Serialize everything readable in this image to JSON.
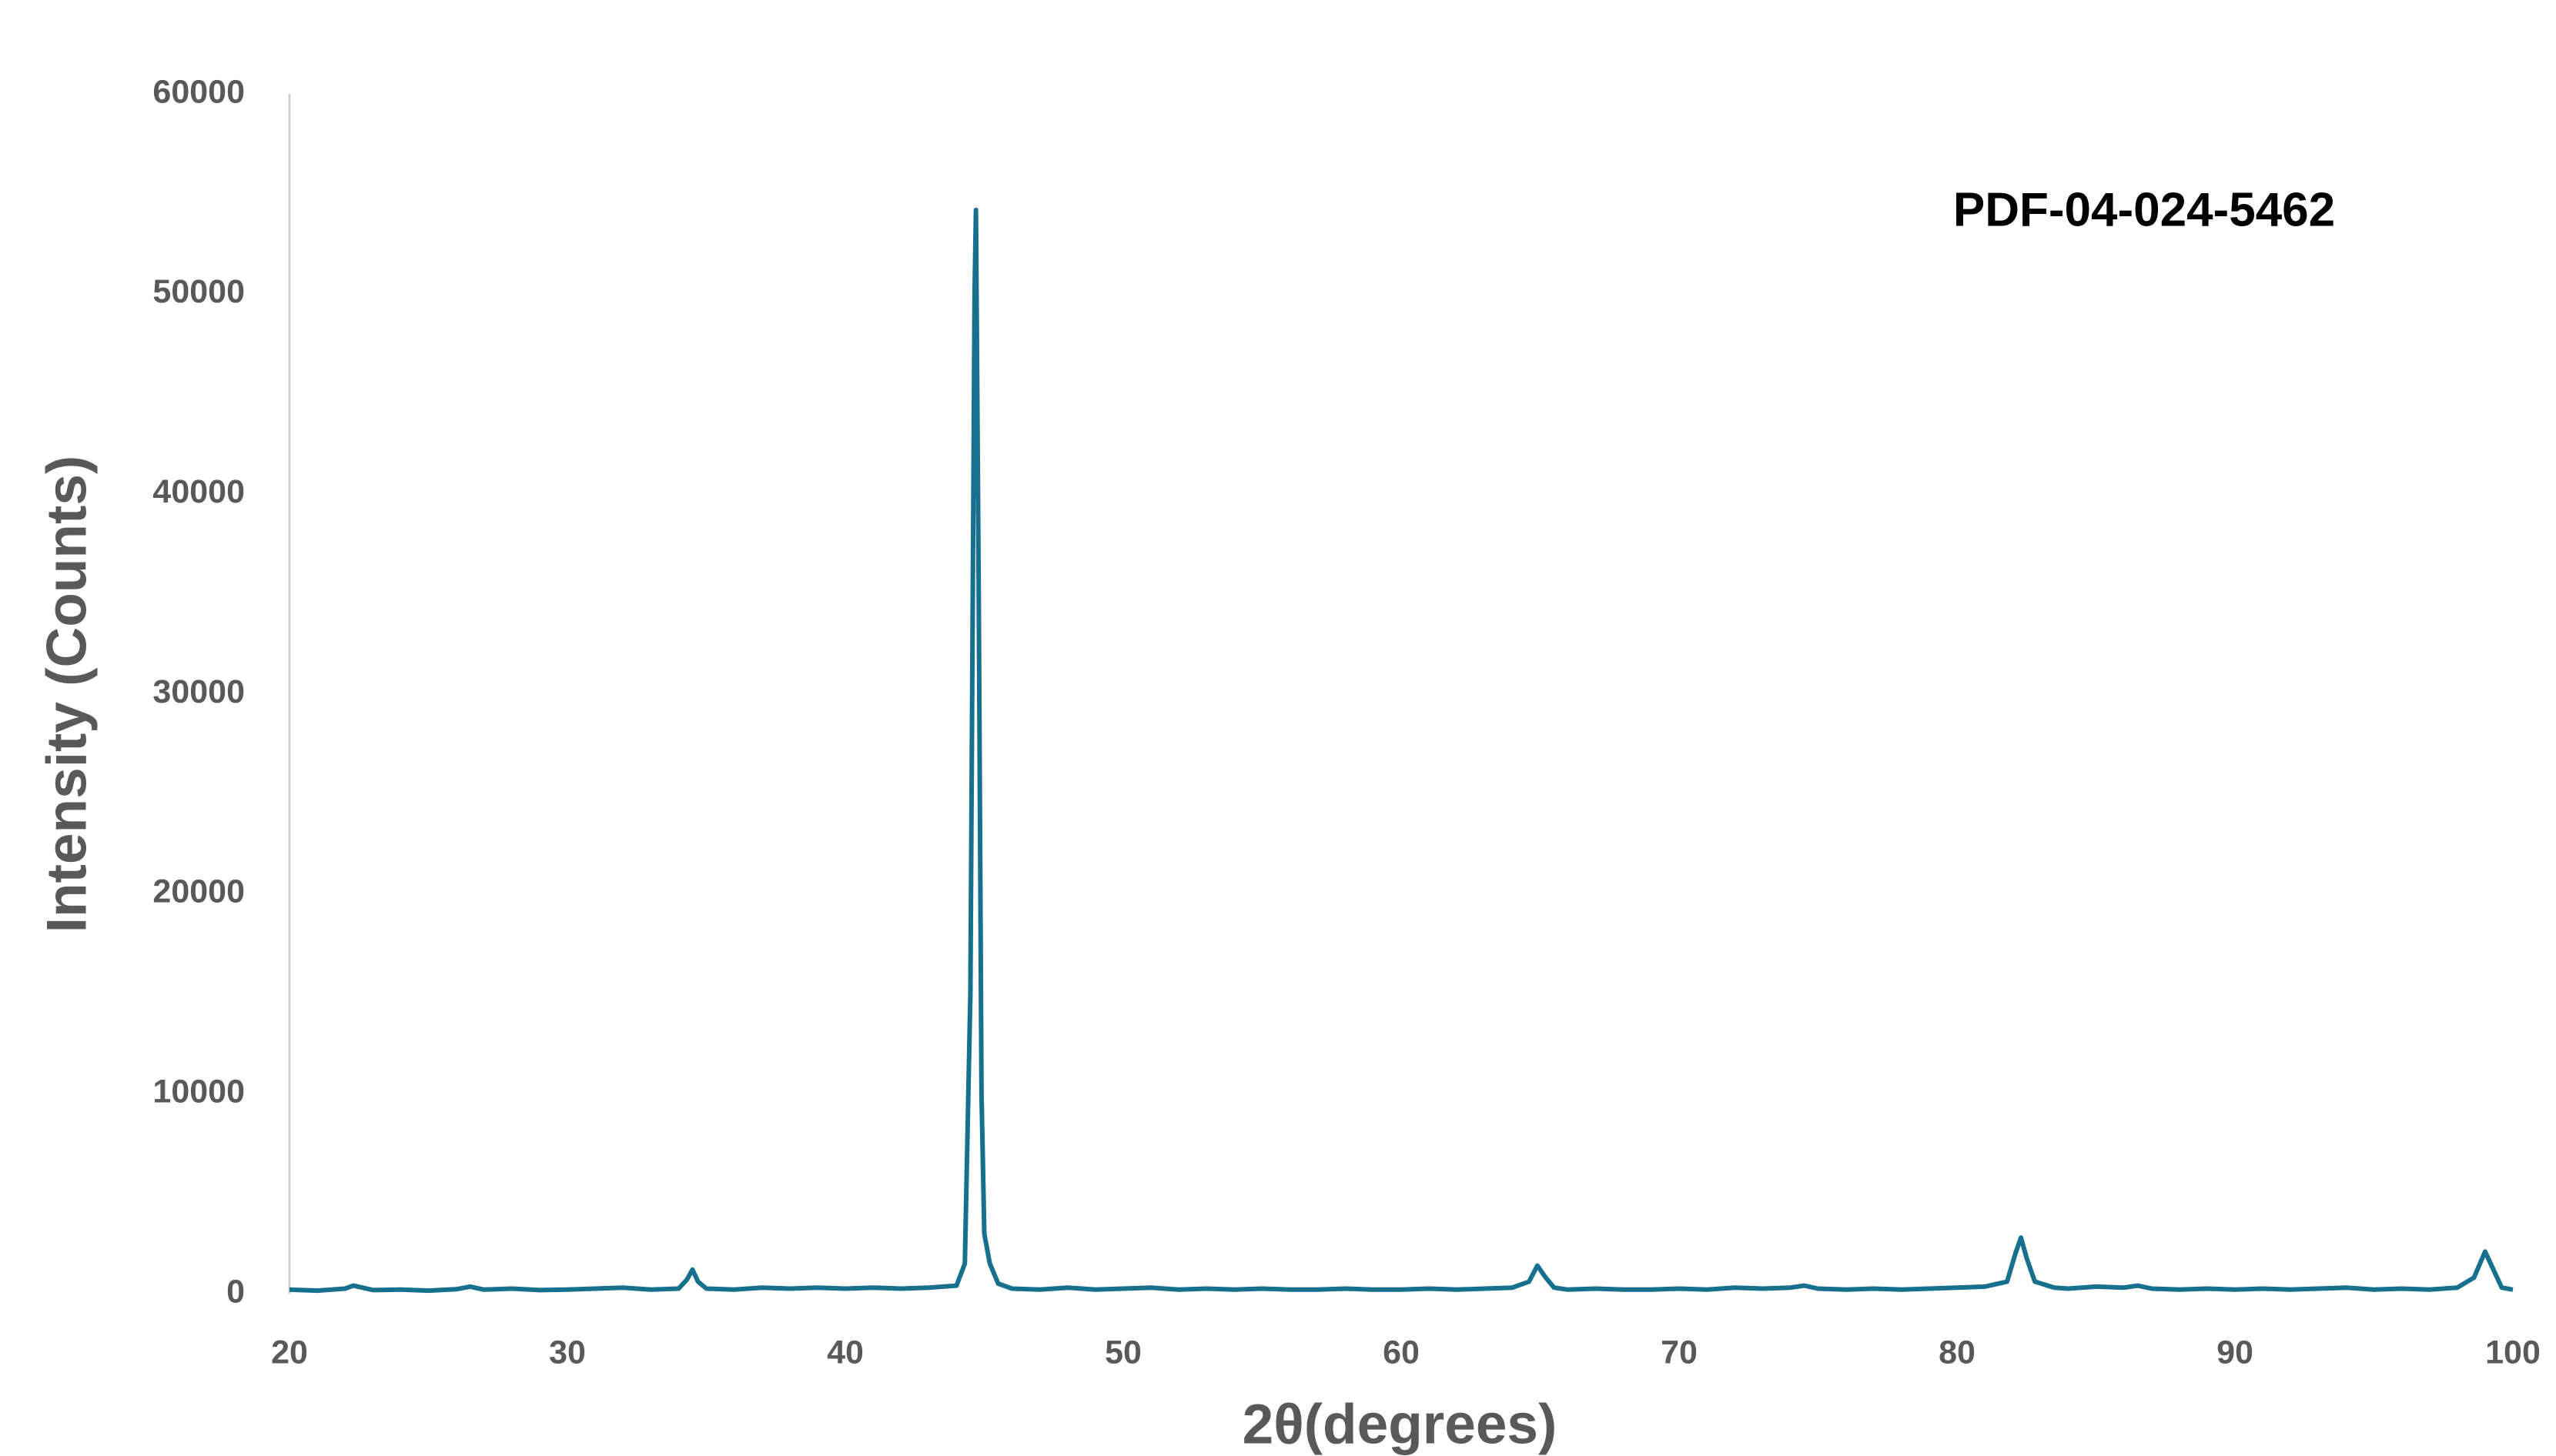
{
  "chart_data": {
    "type": "line",
    "annotation": "PDF-04-024-5462",
    "x_label": "2θ(degrees)",
    "y_label": "Intensity (Counts)",
    "color": "#18708f",
    "x": [
      20,
      21,
      22,
      22.3,
      23,
      24,
      25,
      26,
      26.5,
      27,
      28,
      29,
      30,
      31,
      32,
      33,
      34,
      34.3,
      34.5,
      34.7,
      35,
      36,
      37,
      38,
      39,
      40,
      41,
      42,
      43,
      44,
      44.3,
      44.5,
      44.65,
      44.7,
      44.8,
      44.9,
      45,
      45.2,
      45.5,
      46,
      47,
      48,
      49,
      50,
      51,
      52,
      53,
      54,
      55,
      56,
      57,
      58,
      59,
      60,
      61,
      62,
      63,
      64,
      64.6,
      64.9,
      65.2,
      65.5,
      66,
      67,
      68,
      69,
      70,
      71,
      72,
      73,
      74,
      74.5,
      75,
      76,
      77,
      78,
      79,
      80,
      81,
      81.8,
      82.1,
      82.3,
      82.5,
      82.8,
      83.5,
      84,
      85,
      86,
      86.5,
      87,
      88,
      89,
      90,
      91,
      92,
      93,
      94,
      95,
      96,
      97,
      98,
      98.6,
      99,
      99.3,
      99.6,
      100
    ],
    "values": [
      200,
      150,
      250,
      400,
      180,
      200,
      150,
      220,
      350,
      200,
      250,
      180,
      200,
      250,
      300,
      200,
      250,
      700,
      1200,
      600,
      250,
      200,
      300,
      250,
      300,
      250,
      300,
      250,
      300,
      400,
      1500,
      15000,
      50000,
      54200,
      35000,
      10000,
      3000,
      1500,
      500,
      250,
      200,
      300,
      200,
      250,
      300,
      200,
      250,
      200,
      250,
      200,
      200,
      250,
      200,
      200,
      250,
      200,
      250,
      300,
      600,
      1400,
      800,
      300,
      200,
      250,
      200,
      200,
      250,
      200,
      300,
      250,
      300,
      400,
      250,
      200,
      250,
      200,
      250,
      300,
      350,
      600,
      2000,
      2800,
      1800,
      600,
      300,
      250,
      350,
      300,
      400,
      250,
      200,
      250,
      200,
      250,
      200,
      250,
      300,
      200,
      250,
      200,
      300,
      800,
      2100,
      1200,
      300,
      200
    ],
    "xlim": [
      20,
      100
    ],
    "xticks": [
      20,
      30,
      40,
      50,
      60,
      70,
      80,
      90,
      100
    ],
    "ylim": [
      0,
      60000
    ],
    "yticks": [
      0,
      10000,
      20000,
      30000,
      40000,
      50000,
      60000
    ]
  }
}
